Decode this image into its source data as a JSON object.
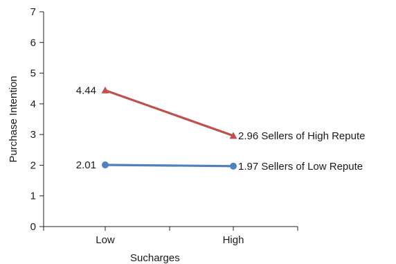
{
  "chart_data": {
    "type": "line",
    "categories": [
      "Low",
      "High"
    ],
    "xlabel": "Sucharges",
    "ylabel": "Purchase Intention",
    "ylim": [
      0,
      7
    ],
    "yticks": [
      "0",
      "1",
      "2",
      "3",
      "4",
      "5",
      "6",
      "7"
    ],
    "grid": false,
    "series": [
      {
        "name": "Sellers of High Repute",
        "values": [
          4.44,
          2.96
        ],
        "labels": [
          "4.44",
          "2.96"
        ],
        "color": "#c0504d",
        "marker": "triangle"
      },
      {
        "name": "Sellers of Low Repute",
        "values": [
          2.01,
          1.97
        ],
        "labels": [
          "2.01",
          "1.97"
        ],
        "color": "#4f81bd",
        "marker": "circle"
      }
    ]
  }
}
